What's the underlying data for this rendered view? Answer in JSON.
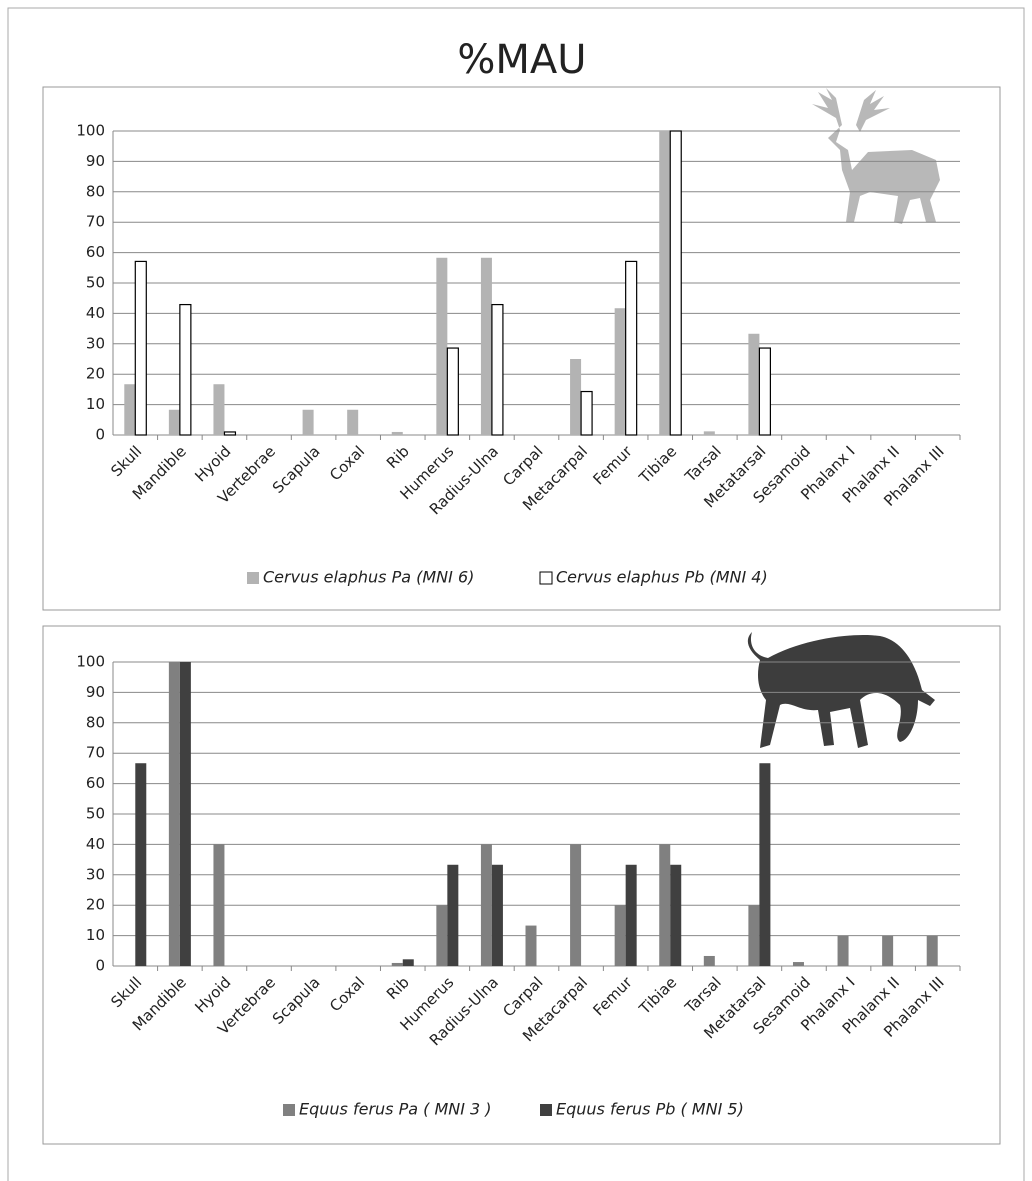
{
  "title": "%MAU",
  "chart_data": [
    {
      "type": "bar",
      "categories": [
        "Skull",
        "Mandible",
        "Hyoid",
        "Vertebrae",
        "Scapula",
        "Coxal",
        "Rib",
        "Humerus",
        "Radius-Ulna",
        "Carpal",
        "Metacarpal",
        "Femur",
        "Tibiae",
        "Tarsal",
        "Metatarsal",
        "Sesamoid",
        "Phalanx I",
        "Phalanx II",
        "Phalanx III"
      ],
      "series": [
        {
          "name": "Cervus elaphus Pa (MNI 6)",
          "color": "#b3b3b3",
          "values": [
            16.7,
            8.3,
            16.7,
            0,
            8.3,
            8.3,
            1,
            58.3,
            58.3,
            0,
            25,
            41.7,
            100,
            1.2,
            33.3,
            0,
            0,
            0,
            0
          ]
        },
        {
          "name": "Cervus elaphus Pb (MNI 4)",
          "color": "#ffffff",
          "values": [
            57.1,
            42.9,
            1,
            0,
            0,
            0,
            0,
            28.6,
            42.9,
            0,
            14.3,
            57.1,
            100,
            0,
            28.6,
            0,
            0,
            0,
            0
          ]
        }
      ],
      "ylim": [
        0,
        100
      ],
      "yticks": [
        0,
        10,
        20,
        30,
        40,
        50,
        60,
        70,
        80,
        90,
        100
      ],
      "grid": true,
      "legend": "bottom"
    },
    {
      "type": "bar",
      "categories": [
        "Skull",
        "Mandible",
        "Hyoid",
        "Vertebrae",
        "Scapula",
        "Coxal",
        "Rib",
        "Humerus",
        "Radius-Ulna",
        "Carpal",
        "Metacarpal",
        "Femur",
        "Tibiae",
        "Tarsal",
        "Metatarsal",
        "Sesamoid",
        "Phalanx I",
        "Phalanx II",
        "Phalanx III"
      ],
      "series": [
        {
          "name": "Equus ferus Pa ( MNI 3 )",
          "color": "#808080",
          "values": [
            0,
            100,
            40,
            0,
            0,
            0,
            1,
            20,
            40,
            13.3,
            40,
            20,
            40,
            3.3,
            20,
            1.3,
            10,
            10,
            10
          ]
        },
        {
          "name": "Equus ferus Pb ( MNI 5)",
          "color": "#404040",
          "values": [
            66.7,
            100,
            0,
            0,
            0,
            0,
            2.2,
            33.3,
            33.3,
            0,
            0,
            33.3,
            33.3,
            0,
            66.7,
            0,
            0,
            0,
            0
          ]
        }
      ],
      "ylim": [
        0,
        100
      ],
      "yticks": [
        0,
        10,
        20,
        30,
        40,
        50,
        60,
        70,
        80,
        90,
        100
      ],
      "grid": true,
      "legend": "bottom"
    }
  ]
}
